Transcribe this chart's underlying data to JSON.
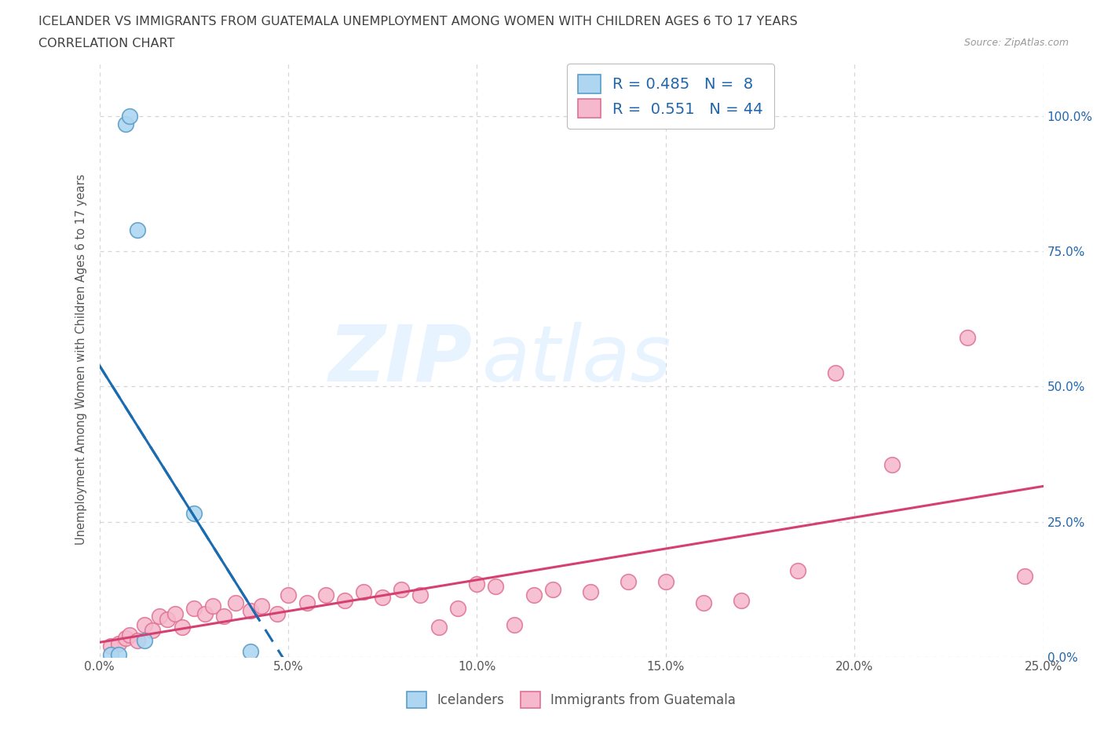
{
  "title_line1": "ICELANDER VS IMMIGRANTS FROM GUATEMALA UNEMPLOYMENT AMONG WOMEN WITH CHILDREN AGES 6 TO 17 YEARS",
  "title_line2": "CORRELATION CHART",
  "source_text": "Source: ZipAtlas.com",
  "ylabel": "Unemployment Among Women with Children Ages 6 to 17 years",
  "xlim": [
    0.0,
    0.25
  ],
  "ylim": [
    0.0,
    1.1
  ],
  "xticks": [
    0.0,
    0.05,
    0.1,
    0.15,
    0.2,
    0.25
  ],
  "yticks": [
    0.0,
    0.25,
    0.5,
    0.75,
    1.0
  ],
  "ytick_labels_right": [
    "0.0%",
    "25.0%",
    "50.0%",
    "75.0%",
    "100.0%"
  ],
  "xtick_labels": [
    "0.0%",
    "5.0%",
    "10.0%",
    "15.0%",
    "20.0%",
    "25.0%"
  ],
  "icelanders_x": [
    0.003,
    0.005,
    0.007,
    0.008,
    0.01,
    0.012,
    0.025,
    0.04
  ],
  "icelanders_y": [
    0.005,
    0.005,
    0.985,
    1.0,
    0.79,
    0.03,
    0.265,
    0.01
  ],
  "guatemala_x": [
    0.003,
    0.005,
    0.007,
    0.008,
    0.01,
    0.012,
    0.014,
    0.016,
    0.018,
    0.02,
    0.022,
    0.025,
    0.028,
    0.03,
    0.033,
    0.036,
    0.04,
    0.043,
    0.047,
    0.05,
    0.055,
    0.06,
    0.065,
    0.07,
    0.075,
    0.08,
    0.085,
    0.09,
    0.095,
    0.1,
    0.105,
    0.11,
    0.115,
    0.12,
    0.13,
    0.14,
    0.15,
    0.16,
    0.17,
    0.185,
    0.195,
    0.21,
    0.23,
    0.245
  ],
  "guatemala_y": [
    0.02,
    0.025,
    0.035,
    0.04,
    0.03,
    0.06,
    0.05,
    0.075,
    0.07,
    0.08,
    0.055,
    0.09,
    0.08,
    0.095,
    0.075,
    0.1,
    0.085,
    0.095,
    0.08,
    0.115,
    0.1,
    0.115,
    0.105,
    0.12,
    0.11,
    0.125,
    0.115,
    0.055,
    0.09,
    0.135,
    0.13,
    0.06,
    0.115,
    0.125,
    0.12,
    0.14,
    0.14,
    0.1,
    0.105,
    0.16,
    0.525,
    0.355,
    0.59,
    0.15
  ],
  "icelanders_R": 0.485,
  "icelanders_N": 8,
  "guatemala_R": 0.551,
  "guatemala_N": 44,
  "blue_scatter_color": "#AED6F0",
  "blue_edge_color": "#5B9DC9",
  "blue_line_color": "#1A6BB0",
  "blue_line_dash": [
    6,
    4
  ],
  "pink_scatter_color": "#F5B8CC",
  "pink_edge_color": "#E07090",
  "pink_line_color": "#D64070",
  "watermark_zip_bold": true,
  "background_color": "#FFFFFF",
  "grid_color": "#D5D5D5",
  "grid_dash": [
    4,
    4
  ]
}
